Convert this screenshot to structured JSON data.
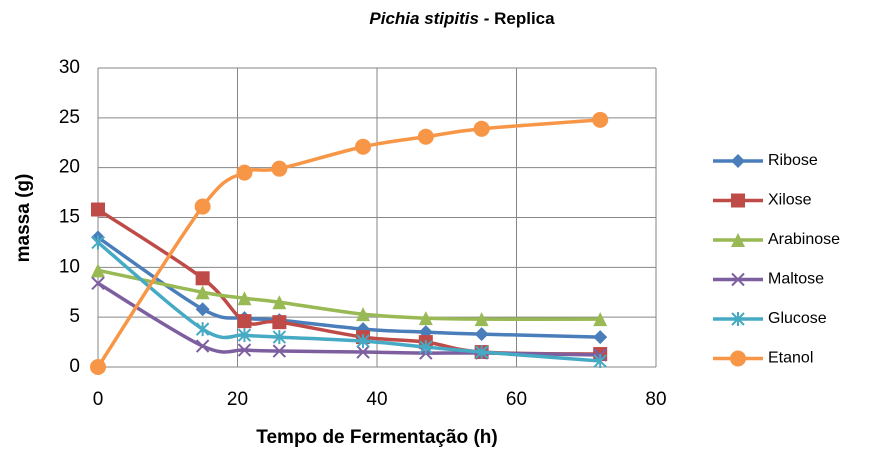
{
  "chart_data": {
    "type": "line",
    "title": [
      "Pichia stipitis -",
      "Replica"
    ],
    "x_label": "Tempo de Fermentação (h)",
    "y_label": "massa (g)",
    "x": [
      0,
      15,
      21,
      26,
      38,
      47,
      55,
      72
    ],
    "series": [
      {
        "name": "Ribose",
        "color": "#4a7ebb",
        "marker": "diamond",
        "values": [
          13,
          5.8,
          4.9,
          4.7,
          3.8,
          3.5,
          3.3,
          3.0
        ]
      },
      {
        "name": "Xilose",
        "color": "#be4b48",
        "marker": "square",
        "values": [
          15.8,
          8.9,
          4.6,
          4.5,
          3.0,
          2.5,
          1.5,
          1.3
        ]
      },
      {
        "name": "Arabinose",
        "color": "#98b954",
        "marker": "triangle",
        "values": [
          9.7,
          7.5,
          6.9,
          6.5,
          5.3,
          4.9,
          4.8,
          4.8
        ]
      },
      {
        "name": "Maltose",
        "color": "#7d5fa0",
        "marker": "x",
        "values": [
          8.4,
          2.1,
          1.7,
          1.6,
          1.5,
          1.4,
          1.4,
          1.2
        ]
      },
      {
        "name": "Glucose",
        "color": "#46aac5",
        "marker": "star",
        "values": [
          12.5,
          3.8,
          3.2,
          3.0,
          2.6,
          2.0,
          1.5,
          0.6
        ]
      },
      {
        "name": "Etanol",
        "color": "#f79646",
        "marker": "circle",
        "values": [
          0,
          16.1,
          19.5,
          19.9,
          22.1,
          23.1,
          23.9,
          24.8
        ]
      }
    ],
    "xlim": [
      0,
      80
    ],
    "xticks": [
      0,
      20,
      40,
      60,
      80
    ],
    "ylim": [
      0,
      30
    ],
    "yticks": [
      0,
      5,
      10,
      15,
      20,
      25,
      30
    ],
    "grid": true,
    "legend": "right"
  }
}
